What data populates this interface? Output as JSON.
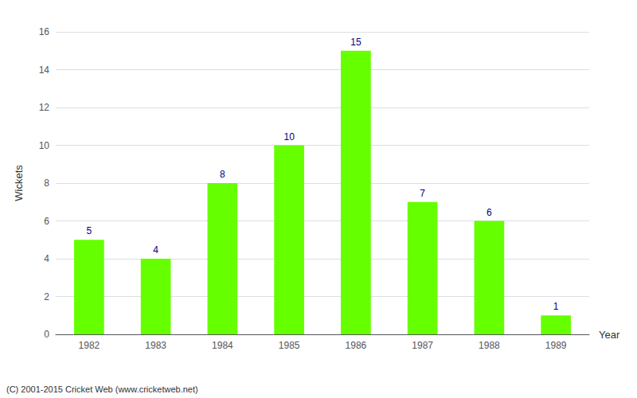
{
  "chart_data": {
    "type": "bar",
    "xlabel": "Year",
    "ylabel": "Wickets",
    "categories": [
      "1982",
      "1983",
      "1984",
      "1985",
      "1986",
      "1987",
      "1988",
      "1989"
    ],
    "values": [
      5,
      4,
      8,
      10,
      15,
      7,
      6,
      1
    ],
    "color": "#66ff00",
    "ylim": [
      0,
      16
    ],
    "yticks": [
      0,
      2,
      4,
      6,
      8,
      10,
      12,
      14,
      16
    ],
    "grid": true,
    "data_labels": true,
    "annotations": [
      "(C) 2001-2015 Cricket Web (www.cricketweb.net)"
    ]
  }
}
